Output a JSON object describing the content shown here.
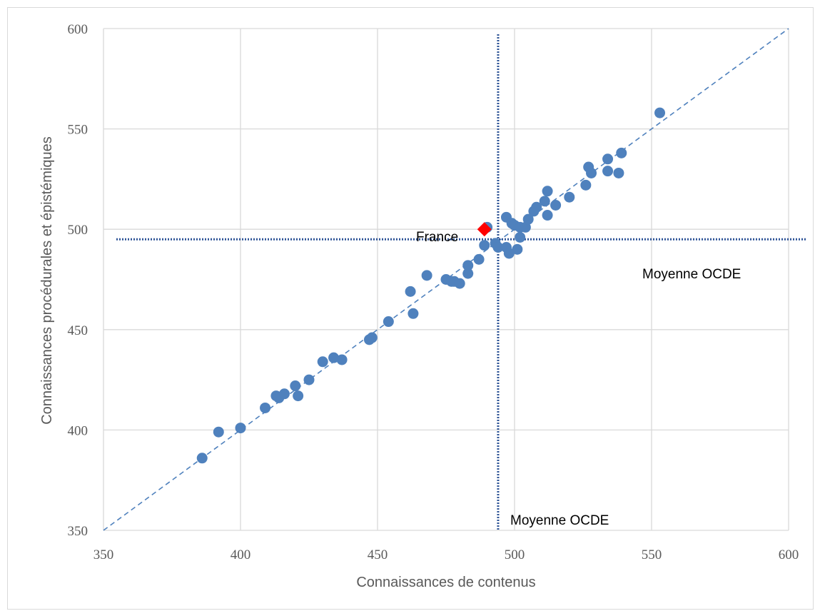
{
  "chart_data": {
    "type": "scatter",
    "title": "",
    "xlabel": "Connaissances de contenus",
    "ylabel": "Connaissances procédurales et épistémiques",
    "xlim": [
      350,
      600
    ],
    "ylim": [
      350,
      600
    ],
    "xticks": [
      "350",
      "400",
      "450",
      "500",
      "550",
      "600"
    ],
    "yticks": [
      "350",
      "400",
      "450",
      "500",
      "550",
      "600"
    ],
    "grid": true,
    "legend": "none",
    "diagonal_reference": {
      "from": [
        350,
        350
      ],
      "to": [
        600,
        600
      ],
      "style": "dashed",
      "color": "#4f81bd"
    },
    "oecd_mean_x": 494,
    "oecd_mean_y": 495,
    "oecd_mean_label_x": "Moyenne OCDE",
    "oecd_mean_label_y": "Moyenne OCDE",
    "highlight": {
      "label": "France",
      "x": 489,
      "y": 500,
      "color": "#ff0000"
    },
    "series_color": "#4f81bd",
    "points": [
      {
        "x": 386,
        "y": 386
      },
      {
        "x": 392,
        "y": 399
      },
      {
        "x": 400,
        "y": 401
      },
      {
        "x": 409,
        "y": 411
      },
      {
        "x": 413,
        "y": 417
      },
      {
        "x": 414,
        "y": 416
      },
      {
        "x": 416,
        "y": 418
      },
      {
        "x": 420,
        "y": 422
      },
      {
        "x": 421,
        "y": 417
      },
      {
        "x": 425,
        "y": 425
      },
      {
        "x": 430,
        "y": 434
      },
      {
        "x": 434,
        "y": 436
      },
      {
        "x": 437,
        "y": 435
      },
      {
        "x": 447,
        "y": 445
      },
      {
        "x": 448,
        "y": 446
      },
      {
        "x": 454,
        "y": 454
      },
      {
        "x": 462,
        "y": 469
      },
      {
        "x": 463,
        "y": 458
      },
      {
        "x": 468,
        "y": 477
      },
      {
        "x": 475,
        "y": 475
      },
      {
        "x": 477,
        "y": 474
      },
      {
        "x": 478,
        "y": 474
      },
      {
        "x": 480,
        "y": 473
      },
      {
        "x": 483,
        "y": 478
      },
      {
        "x": 483,
        "y": 482
      },
      {
        "x": 487,
        "y": 485
      },
      {
        "x": 489,
        "y": 492
      },
      {
        "x": 490,
        "y": 501
      },
      {
        "x": 493,
        "y": 493
      },
      {
        "x": 494,
        "y": 491
      },
      {
        "x": 497,
        "y": 491
      },
      {
        "x": 497,
        "y": 506
      },
      {
        "x": 498,
        "y": 488
      },
      {
        "x": 499,
        "y": 503
      },
      {
        "x": 500,
        "y": 502
      },
      {
        "x": 501,
        "y": 490
      },
      {
        "x": 502,
        "y": 496
      },
      {
        "x": 502,
        "y": 501
      },
      {
        "x": 504,
        "y": 501
      },
      {
        "x": 505,
        "y": 505
      },
      {
        "x": 507,
        "y": 509
      },
      {
        "x": 508,
        "y": 511
      },
      {
        "x": 511,
        "y": 514
      },
      {
        "x": 512,
        "y": 507
      },
      {
        "x": 512,
        "y": 519
      },
      {
        "x": 515,
        "y": 512
      },
      {
        "x": 520,
        "y": 516
      },
      {
        "x": 526,
        "y": 522
      },
      {
        "x": 527,
        "y": 531
      },
      {
        "x": 528,
        "y": 528
      },
      {
        "x": 534,
        "y": 535
      },
      {
        "x": 534,
        "y": 529
      },
      {
        "x": 538,
        "y": 528
      },
      {
        "x": 539,
        "y": 538
      },
      {
        "x": 553,
        "y": 558
      }
    ]
  }
}
